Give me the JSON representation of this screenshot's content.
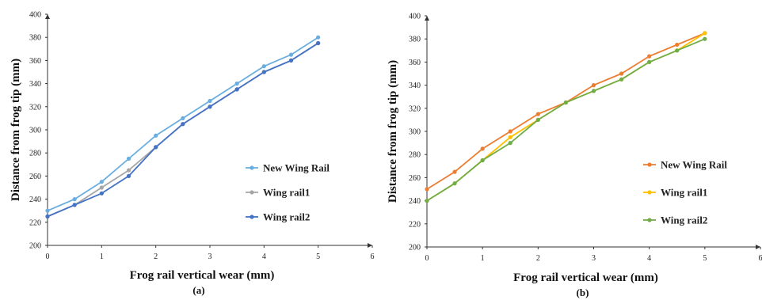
{
  "chart_data": [
    {
      "type": "line",
      "panel_label": "(a)",
      "xlabel": "Frog rail vertical wear (mm)",
      "ylabel": "Distance from frog tip (mm)",
      "xlim": [
        0,
        6
      ],
      "ylim": [
        200,
        400
      ],
      "xticks": [
        0,
        1,
        2,
        3,
        4,
        5,
        6
      ],
      "yticks": [
        200,
        220,
        240,
        260,
        280,
        300,
        320,
        340,
        360,
        380,
        400
      ],
      "x": [
        0,
        0.5,
        1,
        1.5,
        2,
        2.5,
        3,
        3.5,
        4,
        4.5,
        5
      ],
      "legend_position": "right",
      "series": [
        {
          "name": "New Wing Rail",
          "color": "#6aaee0",
          "values": [
            230,
            240,
            255,
            275,
            295,
            310,
            325,
            340,
            355,
            365,
            380
          ]
        },
        {
          "name": "Wing rail1",
          "color": "#a6a6a6",
          "values": [
            225,
            235,
            250,
            265,
            285,
            305,
            320,
            335,
            350,
            360,
            375
          ]
        },
        {
          "name": "Wing rail2",
          "color": "#4472c4",
          "values": [
            225,
            235,
            245,
            260,
            285,
            305,
            320,
            335,
            350,
            360,
            375
          ]
        }
      ]
    },
    {
      "type": "line",
      "panel_label": "(b)",
      "xlabel": "Frog rail vertical wear (mm)",
      "ylabel": "Distance from frog tip (mm)",
      "xlim": [
        0,
        6
      ],
      "ylim": [
        200,
        400
      ],
      "xticks": [
        0,
        1,
        2,
        3,
        4,
        5,
        6
      ],
      "yticks": [
        200,
        220,
        240,
        260,
        280,
        300,
        320,
        340,
        360,
        380,
        400
      ],
      "x": [
        0,
        0.5,
        1,
        1.5,
        2,
        2.5,
        3,
        3.5,
        4,
        4.5,
        5
      ],
      "legend_position": "right",
      "series": [
        {
          "name": "New Wing Rail",
          "color": "#ed7d31",
          "values": [
            250,
            265,
            285,
            300,
            315,
            325,
            340,
            350,
            365,
            375,
            385
          ]
        },
        {
          "name": "Wing rail1",
          "color": "#ffc000",
          "values": [
            240,
            255,
            275,
            295,
            310,
            325,
            335,
            345,
            360,
            370,
            385
          ]
        },
        {
          "name": "Wing rail2",
          "color": "#70ad47",
          "values": [
            240,
            255,
            275,
            290,
            310,
            325,
            335,
            345,
            360,
            370,
            380
          ]
        }
      ]
    }
  ]
}
